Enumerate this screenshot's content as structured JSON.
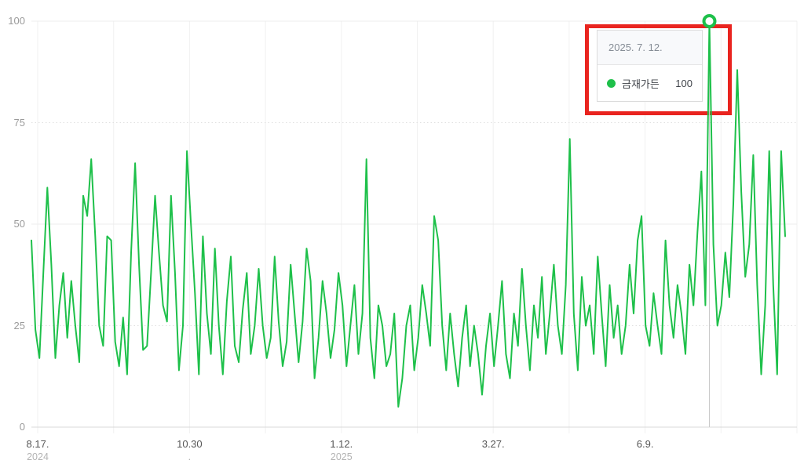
{
  "chart_data": {
    "type": "line",
    "title": "",
    "xlabel": "",
    "ylabel": "",
    "ylim": [
      0,
      100
    ],
    "grid": true,
    "legend_position": "tooltip",
    "y_ticks": [
      "100",
      "75",
      "50",
      "25",
      "0"
    ],
    "x_ticks": [
      {
        "label": "8.17.",
        "sub": "2024"
      },
      {
        "label": "10.30",
        "sub": "."
      },
      {
        "label": "1.12.",
        "sub": "2025"
      },
      {
        "label": "3.27.",
        "sub": ""
      },
      {
        "label": "6.9.",
        "sub": ""
      }
    ],
    "series": [
      {
        "name": "금재가든",
        "color": "#1ec04a",
        "values": [
          46,
          24,
          17,
          38,
          59,
          40,
          17,
          30,
          38,
          22,
          36,
          25,
          16,
          57,
          52,
          66,
          47,
          25,
          20,
          47,
          46,
          21,
          15,
          27,
          13,
          43,
          65,
          40,
          19,
          20,
          38,
          57,
          43,
          30,
          26,
          57,
          38,
          14,
          25,
          68,
          50,
          33,
          13,
          47,
          28,
          18,
          44,
          25,
          13,
          31,
          42,
          20,
          16,
          29,
          38,
          18,
          25,
          39,
          25,
          17,
          22,
          42,
          26,
          15,
          21,
          40,
          28,
          16,
          26,
          44,
          36,
          12,
          22,
          36,
          28,
          17,
          24,
          38,
          30,
          15,
          25,
          35,
          18,
          28,
          66,
          22,
          12,
          30,
          25,
          15,
          18,
          28,
          5,
          12,
          25,
          30,
          14,
          22,
          35,
          28,
          20,
          52,
          46,
          25,
          14,
          28,
          18,
          10,
          22,
          30,
          15,
          25,
          18,
          8,
          20,
          28,
          15,
          25,
          36,
          18,
          12,
          28,
          20,
          39,
          25,
          14,
          30,
          22,
          37,
          18,
          28,
          40,
          25,
          18,
          35,
          71,
          28,
          14,
          37,
          25,
          30,
          18,
          42,
          28,
          15,
          35,
          22,
          30,
          18,
          25,
          40,
          28,
          46,
          52,
          25,
          20,
          33,
          25,
          18,
          46,
          30,
          22,
          35,
          28,
          18,
          40,
          30,
          48,
          63,
          30,
          100,
          45,
          25,
          30,
          43,
          32,
          55,
          88,
          58,
          37,
          45,
          67,
          35,
          13,
          30,
          68,
          35,
          13,
          68,
          47
        ]
      }
    ],
    "highlight": {
      "date": "2025. 7. 12.",
      "series": "금재가든",
      "value": 100
    }
  },
  "tooltip": {
    "date": "2025. 7. 12.",
    "series_name": "금재가든",
    "value": "100"
  },
  "annotation": {
    "shape": "rectangle",
    "color": "#e9241f"
  },
  "colors": {
    "line": "#1ec04a",
    "grid_solid": "#ececec",
    "grid_dotted": "#e0e0e0",
    "axis": "#d9d9d9",
    "cursor": "#c9c9c9",
    "y_label": "#9b9b9b",
    "x_label": "#565656",
    "x_sublabel": "#b3b3b3"
  }
}
